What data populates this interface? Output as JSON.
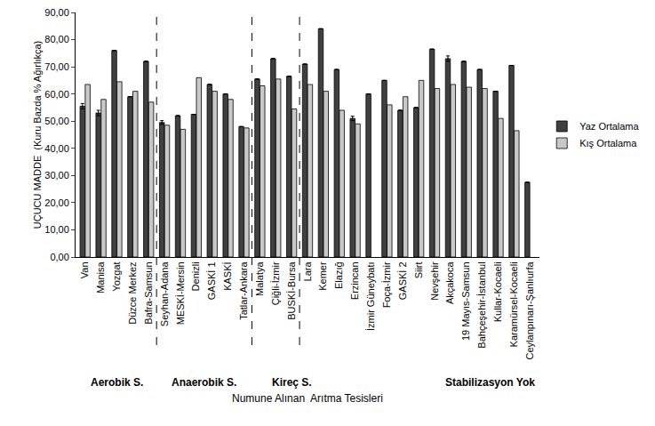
{
  "chart_data": {
    "type": "bar",
    "ylabel": "UÇUCU MADDE  (Kuru Bazda % Ağırlıkça)",
    "xlabel": "Numune Alınan  Arıtma Tesisleri",
    "categories": [
      "Van",
      "Manisa",
      "Yozgat",
      "Düzce Merkez",
      "Bafra-Samsun",
      "Seyhan-Adana",
      "MESKİ-Mersin",
      "Denizli",
      "GASKİ 1",
      "KASKİ",
      "Tatlar-Ankara",
      "Malatya",
      "Çiğli-İzmir",
      "BUSKİ-Bursa",
      "Lara",
      "Kemer",
      "Elazığ",
      "Erzincan",
      "İzmir Güneybatı",
      "Foça-İzmir",
      "GASKİ 2",
      "Siirt",
      "Nevşehir",
      "Akçakoca",
      "19 Mayıs-Samsun",
      "Bahçeşehir-İstanbul",
      "Kullar-Kocaeli",
      "Karamürsel-Kocaeli",
      "Ceylanpınarı-Şanlıurfa"
    ],
    "series": [
      {
        "name": "Yaz Ortalama",
        "color": "#404040",
        "values": [
          55.5,
          53,
          76,
          59,
          72,
          49.5,
          52,
          52.5,
          63.5,
          60,
          48,
          65.5,
          73,
          66.5,
          71,
          84,
          69,
          51,
          60,
          65,
          54,
          55,
          76.5,
          73,
          72,
          69,
          61,
          70.5,
          27.5
        ],
        "errors": [
          1,
          1,
          0,
          0,
          0,
          0.7,
          0,
          0,
          0,
          0,
          0,
          0,
          0,
          0,
          0,
          0,
          0,
          0.8,
          0,
          0,
          0,
          0,
          0,
          1,
          0,
          0,
          0,
          0,
          0
        ]
      },
      {
        "name": "Kış Ortalama",
        "color": "#c8c8c8",
        "values": [
          63.5,
          58,
          64.5,
          61,
          57,
          48.5,
          47,
          66,
          61,
          58,
          47.5,
          63,
          65.5,
          54.5,
          63.5,
          61,
          54,
          49,
          null,
          56,
          59,
          65,
          62,
          63.5,
          62.5,
          62,
          51,
          46.5,
          null
        ]
      }
    ],
    "ylim": [
      0,
      90
    ],
    "yticks": [
      {
        "value": 0,
        "label": "0,00"
      },
      {
        "value": 10,
        "label": "10,00"
      },
      {
        "value": 20,
        "label": "20,00"
      },
      {
        "value": 30,
        "label": "30,00"
      },
      {
        "value": 40,
        "label": "40,00"
      },
      {
        "value": 50,
        "label": "50,00"
      },
      {
        "value": 60,
        "label": "60,00"
      },
      {
        "value": 70,
        "label": "70,00"
      },
      {
        "value": 80,
        "label": "80,00"
      },
      {
        "value": 90,
        "label": "90,00"
      }
    ],
    "annotations": [
      {
        "text": "Aerobik S.",
        "x": 2
      },
      {
        "text": "Anaerobik S.",
        "x": 7.5
      },
      {
        "text": "Kireç S.",
        "x": 13
      },
      {
        "text": "Stabilizasyon Yok",
        "x": 25.5
      }
    ],
    "separators": [
      4.5,
      10.5,
      13.5
    ],
    "grid": false,
    "legend": "right"
  }
}
